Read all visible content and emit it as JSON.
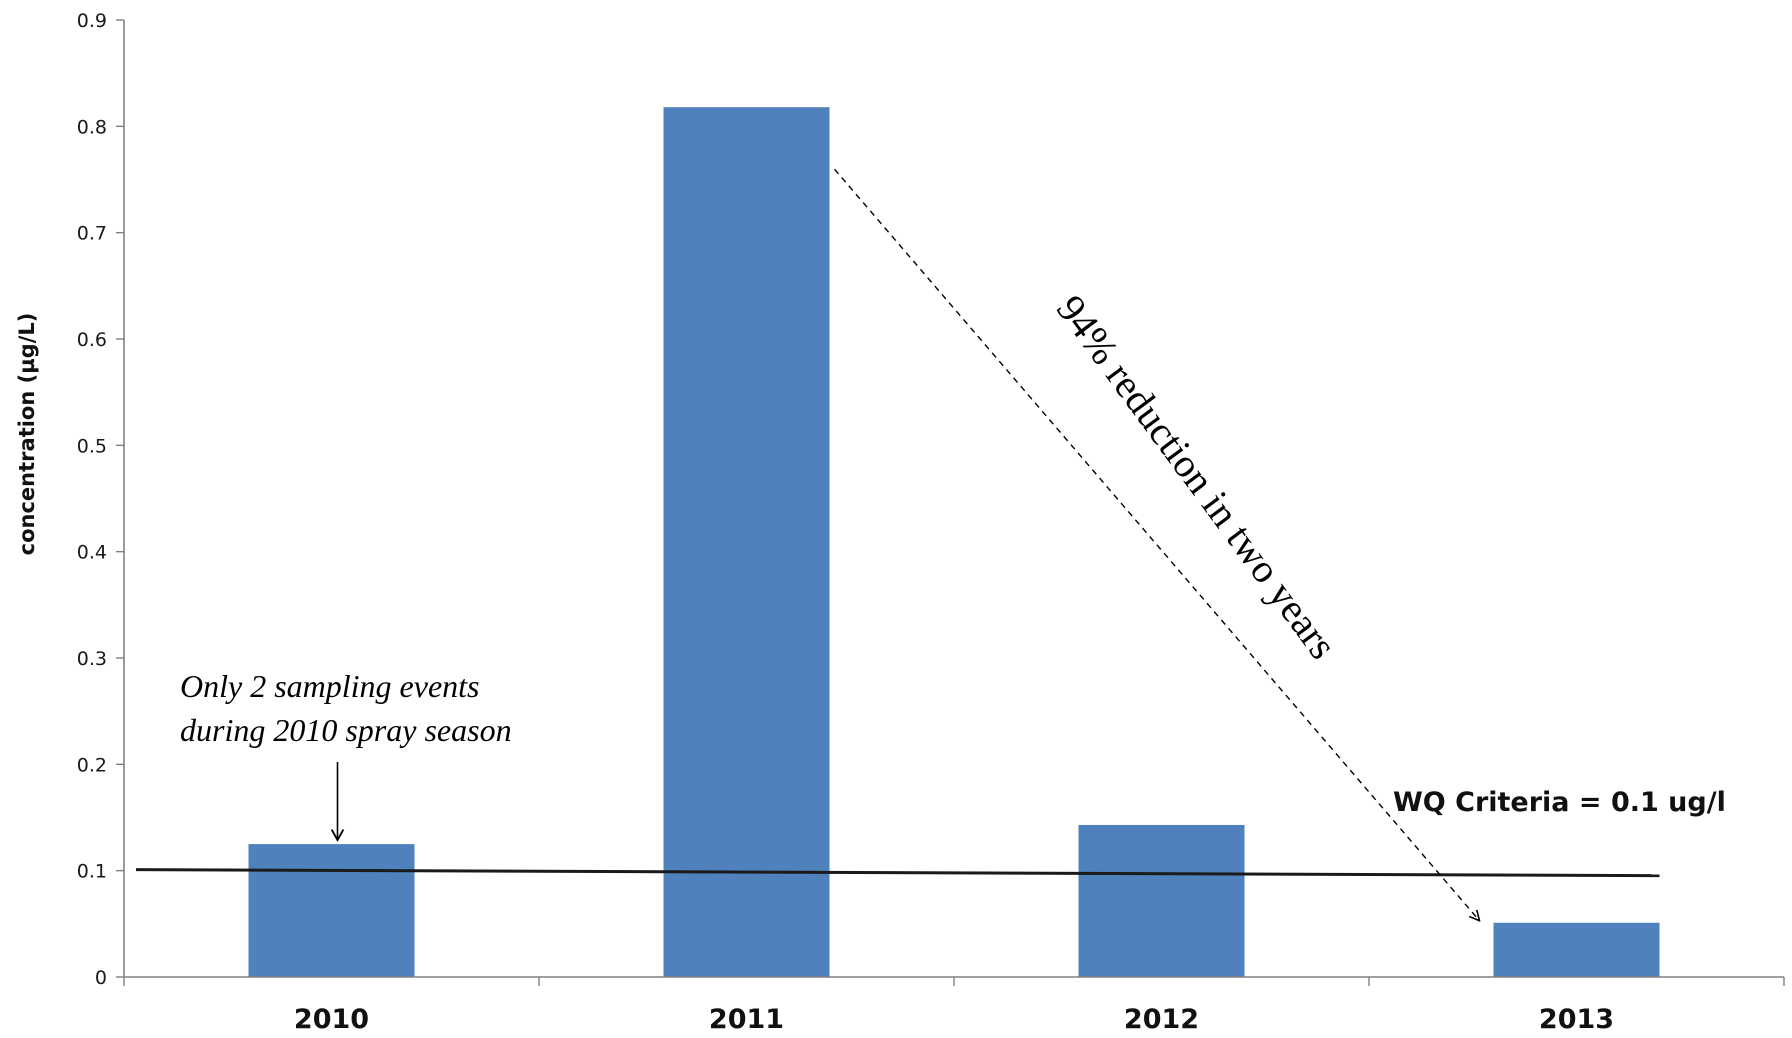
{
  "chart_data": {
    "type": "bar",
    "title": "",
    "xlabel": "",
    "ylabel": "concentration (µg/L)",
    "categories": [
      "2010",
      "2011",
      "2012",
      "2013"
    ],
    "values": [
      0.125,
      0.818,
      0.143,
      0.051
    ],
    "ylim": [
      0,
      0.9
    ],
    "yticks": [
      "0",
      "0.1",
      "0.2",
      "0.3",
      "0.4",
      "0.5",
      "0.6",
      "0.7",
      "0.8",
      "0.9"
    ],
    "grid": false,
    "legend": "none",
    "bar_color": "#4f81bd",
    "reference_line": {
      "value": 0.1,
      "label": "WQ Criteria = 0.1 ug/l",
      "color": "#1a1a1a"
    },
    "annotations": {
      "note_line1": "Only 2 sampling events",
      "note_line2": "during 2010 spray season",
      "note_target": "2010",
      "reduction": "94% reduction in two years",
      "reduction_from": "2011",
      "reduction_to": "2013"
    }
  }
}
